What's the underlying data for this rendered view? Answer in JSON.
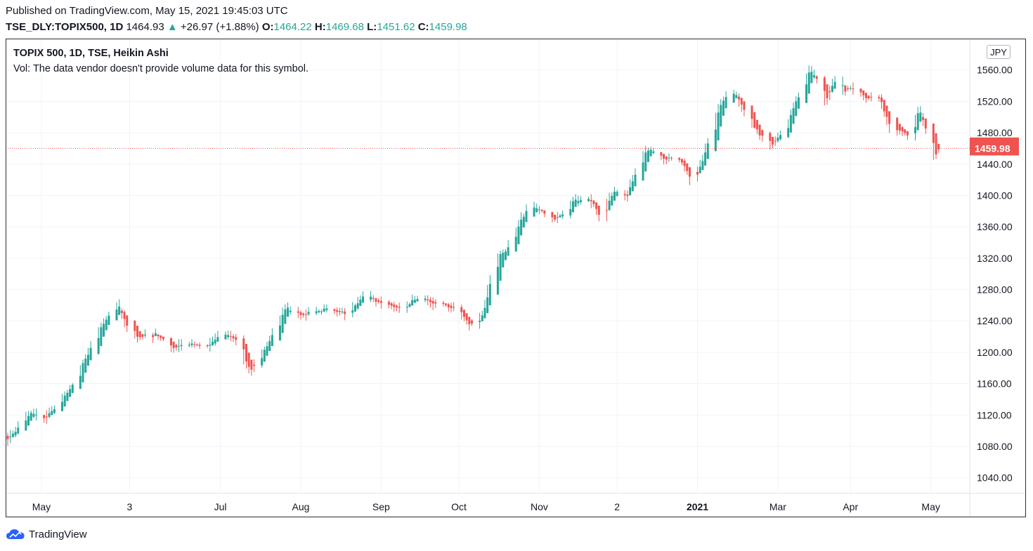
{
  "header": {
    "published": "Published on TradingView.com, May 15, 2021 19:45:03 UTC",
    "symbol": "TSE_DLY:TOPIX500, 1D",
    "last": "1464.93",
    "change": "+26.97 (+1.88%)",
    "open_label": "O:",
    "open": "1464.22",
    "high_label": "H:",
    "high": "1469.68",
    "low_label": "L:",
    "low": "1451.62",
    "close_label": "C:",
    "close": "1459.98"
  },
  "legend": {
    "title": "TOPIX 500, 1D, TSE, Heikin Ashi",
    "volume_note": "Vol: The data vendor doesn't provide volume data for this symbol."
  },
  "currency": "JPY",
  "brand": "TradingView",
  "colors": {
    "up": "#26a69a",
    "down": "#ef5350",
    "grid": "#f0f3fa",
    "text": "#131722"
  },
  "chart_data": {
    "type": "candlestick",
    "style": "Heikin Ashi",
    "ylim": [
      1020,
      1600
    ],
    "y_ticks": [
      1040,
      1080,
      1120,
      1160,
      1200,
      1240,
      1280,
      1320,
      1360,
      1400,
      1440,
      1480,
      1520,
      1560
    ],
    "y_tick_labels": [
      "1040.00",
      "1080.00",
      "1120.00",
      "1160.00",
      "1200.00",
      "1240.00",
      "1280.00",
      "1320.00",
      "1360.00",
      "1400.00",
      "1440.00",
      "1480.00",
      "1520.00",
      "1560.00"
    ],
    "x_tick_labels": [
      "May",
      "3",
      "Jul",
      "Aug",
      "Sep",
      "Oct",
      "Nov",
      "2",
      "2021",
      "Mar",
      "Apr",
      "May"
    ],
    "x_tick_days": [
      13,
      47,
      82,
      113,
      144,
      174,
      205,
      235,
      266,
      297,
      325,
      356
    ],
    "grid": true,
    "price_labels": [
      {
        "value": 1464.93,
        "text": "1464.93"
      },
      {
        "value": 1459.98,
        "text": "1459.98"
      }
    ],
    "last_close_line": 1459.98,
    "anchors": [
      {
        "day": 0,
        "close": 1090
      },
      {
        "day": 8,
        "close": 1122
      },
      {
        "day": 14,
        "close": 1115
      },
      {
        "day": 20,
        "close": 1138
      },
      {
        "day": 25,
        "close": 1160
      },
      {
        "day": 35,
        "close": 1228
      },
      {
        "day": 42,
        "close": 1262
      },
      {
        "day": 45,
        "close": 1238
      },
      {
        "day": 50,
        "close": 1218
      },
      {
        "day": 58,
        "close": 1222
      },
      {
        "day": 63,
        "close": 1205
      },
      {
        "day": 70,
        "close": 1212
      },
      {
        "day": 75,
        "close": 1205
      },
      {
        "day": 83,
        "close": 1226
      },
      {
        "day": 88,
        "close": 1215
      },
      {
        "day": 93,
        "close": 1175
      },
      {
        "day": 100,
        "close": 1210
      },
      {
        "day": 107,
        "close": 1258
      },
      {
        "day": 112,
        "close": 1245
      },
      {
        "day": 118,
        "close": 1255
      },
      {
        "day": 124,
        "close": 1255
      },
      {
        "day": 131,
        "close": 1248
      },
      {
        "day": 137,
        "close": 1270
      },
      {
        "day": 146,
        "close": 1262
      },
      {
        "day": 151,
        "close": 1255
      },
      {
        "day": 158,
        "close": 1270
      },
      {
        "day": 165,
        "close": 1262
      },
      {
        "day": 172,
        "close": 1255
      },
      {
        "day": 178,
        "close": 1235
      },
      {
        "day": 183,
        "close": 1250
      },
      {
        "day": 188,
        "close": 1320
      },
      {
        "day": 193,
        "close": 1335
      },
      {
        "day": 200,
        "close": 1385
      },
      {
        "day": 207,
        "close": 1377
      },
      {
        "day": 211,
        "close": 1368
      },
      {
        "day": 218,
        "close": 1393
      },
      {
        "day": 224,
        "close": 1395
      },
      {
        "day": 228,
        "close": 1375
      },
      {
        "day": 234,
        "close": 1405
      },
      {
        "day": 238,
        "close": 1395
      },
      {
        "day": 244,
        "close": 1452
      },
      {
        "day": 248,
        "close": 1458
      },
      {
        "day": 253,
        "close": 1448
      },
      {
        "day": 259,
        "close": 1445
      },
      {
        "day": 264,
        "close": 1415
      },
      {
        "day": 268,
        "close": 1450
      },
      {
        "day": 275,
        "close": 1520
      },
      {
        "day": 279,
        "close": 1535
      },
      {
        "day": 284,
        "close": 1505
      },
      {
        "day": 290,
        "close": 1475
      },
      {
        "day": 294,
        "close": 1465
      },
      {
        "day": 300,
        "close": 1490
      },
      {
        "day": 306,
        "close": 1540
      },
      {
        "day": 309,
        "close": 1560
      },
      {
        "day": 313,
        "close": 1540
      },
      {
        "day": 315,
        "close": 1520
      },
      {
        "day": 319,
        "close": 1550
      },
      {
        "day": 322,
        "close": 1535
      },
      {
        "day": 327,
        "close": 1535
      },
      {
        "day": 330,
        "close": 1525
      },
      {
        "day": 336,
        "close": 1525
      },
      {
        "day": 340,
        "close": 1485
      },
      {
        "day": 347,
        "close": 1478
      },
      {
        "day": 351,
        "close": 1510
      },
      {
        "day": 355,
        "close": 1475
      },
      {
        "day": 357,
        "close": 1448
      },
      {
        "day": 359,
        "close": 1460
      }
    ]
  }
}
